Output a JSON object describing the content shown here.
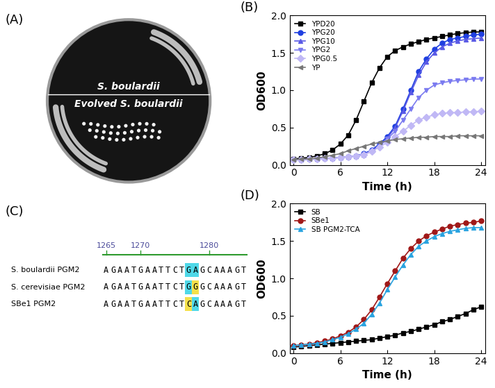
{
  "chart_data": [
    {
      "type": "line",
      "title": "(B)",
      "x_label": "Time (h)",
      "y_label": "OD600",
      "x": [
        0,
        1,
        2,
        3,
        4,
        5,
        6,
        7,
        8,
        9,
        10,
        11,
        12,
        13,
        14,
        15,
        16,
        17,
        18,
        19,
        20,
        21,
        22,
        23,
        24
      ],
      "xlim": [
        -0.5,
        24.5
      ],
      "xticks": [
        0,
        6,
        12,
        18,
        24
      ],
      "ylim": [
        0,
        2
      ],
      "yticks": [
        {
          "value": 0,
          "label": "0.0"
        },
        0.5,
        {
          "value": 1,
          "label": "1.0"
        },
        1.5,
        {
          "value": 2,
          "label": "2.0"
        }
      ],
      "legend": "upper left",
      "series": [
        {
          "name": "YPD20",
          "color": "#000000",
          "marker": "square",
          "line_style": "solid",
          "values": [
            0.08,
            0.09,
            0.1,
            0.12,
            0.15,
            0.2,
            0.28,
            0.4,
            0.6,
            0.85,
            1.1,
            1.3,
            1.45,
            1.53,
            1.58,
            1.62,
            1.65,
            1.68,
            1.7,
            1.72,
            1.74,
            1.76,
            1.77,
            1.78,
            1.78
          ]
        },
        {
          "name": "YPG20",
          "color": "#1f3fe0",
          "marker": "circle",
          "line_style": "solid",
          "values": [
            0.07,
            0.07,
            0.08,
            0.08,
            0.09,
            0.09,
            0.1,
            0.11,
            0.12,
            0.15,
            0.2,
            0.28,
            0.38,
            0.52,
            0.75,
            1.0,
            1.25,
            1.42,
            1.55,
            1.63,
            1.68,
            1.7,
            1.72,
            1.74,
            1.75
          ]
        },
        {
          "name": "YPG10",
          "color": "#5a5ae6",
          "marker": "triangle_up",
          "line_style": "solid",
          "values": [
            0.07,
            0.07,
            0.08,
            0.08,
            0.09,
            0.09,
            0.1,
            0.11,
            0.12,
            0.14,
            0.19,
            0.26,
            0.36,
            0.5,
            0.72,
            0.97,
            1.2,
            1.38,
            1.5,
            1.58,
            1.63,
            1.66,
            1.68,
            1.69,
            1.7
          ]
        },
        {
          "name": "YPG2",
          "color": "#7b7bf0",
          "marker": "triangle_down",
          "line_style": "solid",
          "values": [
            0.07,
            0.07,
            0.08,
            0.08,
            0.09,
            0.09,
            0.1,
            0.11,
            0.12,
            0.14,
            0.18,
            0.25,
            0.35,
            0.45,
            0.6,
            0.75,
            0.9,
            1.0,
            1.07,
            1.1,
            1.12,
            1.13,
            1.14,
            1.15,
            1.15
          ]
        },
        {
          "name": "YPG0.5",
          "color": "#c0b8f5",
          "marker": "diamond",
          "line_style": "solid",
          "values": [
            0.07,
            0.07,
            0.08,
            0.08,
            0.09,
            0.09,
            0.1,
            0.11,
            0.12,
            0.14,
            0.18,
            0.24,
            0.3,
            0.38,
            0.45,
            0.53,
            0.6,
            0.64,
            0.67,
            0.69,
            0.7,
            0.7,
            0.71,
            0.71,
            0.72
          ]
        },
        {
          "name": "YP",
          "color": "#777777",
          "marker": "triangle_left",
          "line_style": "solid",
          "values": [
            0.07,
            0.08,
            0.08,
            0.09,
            0.11,
            0.13,
            0.15,
            0.19,
            0.22,
            0.25,
            0.28,
            0.3,
            0.32,
            0.34,
            0.35,
            0.36,
            0.37,
            0.37,
            0.38,
            0.38,
            0.38,
            0.39,
            0.39,
            0.39,
            0.39
          ]
        }
      ]
    },
    {
      "type": "line",
      "title": "(D)",
      "x_label": "Time (h)",
      "y_label": "OD600",
      "x": [
        0,
        1,
        2,
        3,
        4,
        5,
        6,
        7,
        8,
        9,
        10,
        11,
        12,
        13,
        14,
        15,
        16,
        17,
        18,
        19,
        20,
        21,
        22,
        23,
        24
      ],
      "xlim": [
        -0.5,
        24.5
      ],
      "xticks": [
        0,
        6,
        12,
        18,
        24
      ],
      "ylim": [
        0,
        2
      ],
      "yticks": [
        {
          "value": 0,
          "label": "0.0"
        },
        0.5,
        {
          "value": 1,
          "label": "1.0"
        },
        1.5,
        {
          "value": 2,
          "label": "2.0"
        }
      ],
      "legend": "upper left",
      "series": [
        {
          "name": "SB",
          "color": "#000000",
          "marker": "square",
          "line_style": "solid",
          "values": [
            0.08,
            0.09,
            0.1,
            0.11,
            0.12,
            0.13,
            0.14,
            0.15,
            0.16,
            0.17,
            0.18,
            0.2,
            0.22,
            0.24,
            0.27,
            0.29,
            0.32,
            0.35,
            0.38,
            0.42,
            0.45,
            0.49,
            0.53,
            0.58,
            0.62
          ]
        },
        {
          "name": "SBe1",
          "color": "#a01818",
          "marker": "circle",
          "line_style": "solid",
          "values": [
            0.1,
            0.11,
            0.12,
            0.14,
            0.16,
            0.19,
            0.23,
            0.28,
            0.35,
            0.45,
            0.58,
            0.75,
            0.93,
            1.1,
            1.27,
            1.4,
            1.5,
            1.57,
            1.62,
            1.66,
            1.7,
            1.72,
            1.74,
            1.75,
            1.77
          ]
        },
        {
          "name": "SB PGM2-TCA",
          "color": "#29a3e0",
          "marker": "triangle_up",
          "line_style": "solid",
          "values": [
            0.1,
            0.11,
            0.12,
            0.13,
            0.15,
            0.18,
            0.21,
            0.26,
            0.32,
            0.4,
            0.52,
            0.67,
            0.85,
            1.02,
            1.18,
            1.32,
            1.43,
            1.5,
            1.56,
            1.6,
            1.63,
            1.65,
            1.67,
            1.68,
            1.68
          ]
        }
      ]
    }
  ],
  "photo": {
    "label": "(A)",
    "top_text": "S. boulardii",
    "bottom_text": "Evolved S. boulardii"
  },
  "alignment": {
    "label": "(C)",
    "ruler": [
      1265,
      1270,
      1280
    ],
    "rows": [
      {
        "name": "S. boulardii PGM2",
        "sequence": "AGAATGAATTCTGAGCAAAGT"
      },
      {
        "name": "S. cerevisiae PGM2",
        "sequence": "AGAATGAATTCTGGGCAAAGT"
      },
      {
        "name": "SBe1 PGM2",
        "sequence": "AGAATGAATTCTCAGCAAAGT"
      }
    ]
  }
}
